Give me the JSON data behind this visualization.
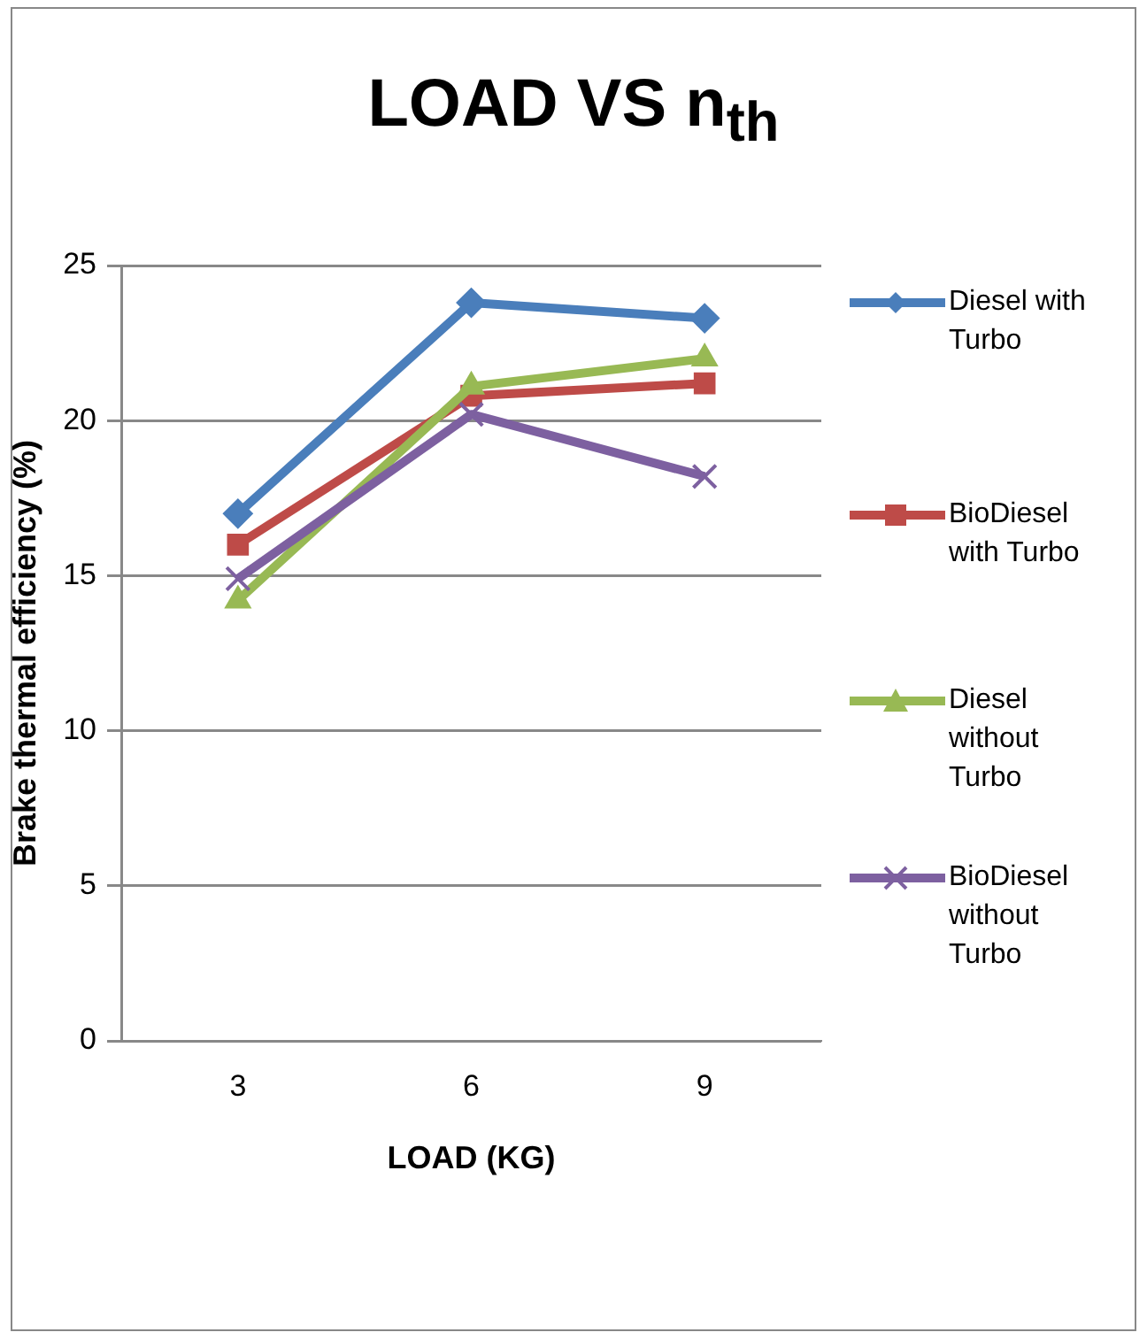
{
  "chart_data": {
    "type": "line",
    "title": "LOAD VS n$_{th}$",
    "xlabel": "LOAD (KG)",
    "ylabel": "Brake thermal efficiency (%)",
    "categories": [
      "3",
      "6",
      "9"
    ],
    "ylim": [
      0,
      25
    ],
    "yticks": [
      0,
      5,
      10,
      15,
      20,
      25
    ],
    "grid": "y",
    "legend": "right",
    "line_style": "solid",
    "series": [
      {
        "name": "Diesel with Turbo",
        "color": "#4a7ebb",
        "marker": "diamond",
        "values": [
          17.0,
          23.8,
          23.3
        ]
      },
      {
        "name": "BioDiesel with Turbo",
        "color": "#be4b48",
        "marker": "square",
        "values": [
          16.0,
          20.8,
          21.2
        ]
      },
      {
        "name": "Diesel without Turbo",
        "color": "#98b954",
        "marker": "triangle",
        "values": [
          14.2,
          21.1,
          22.0
        ]
      },
      {
        "name": "BioDiesel without Turbo",
        "color": "#7d60a0",
        "marker": "cross",
        "values": [
          14.9,
          20.2,
          18.2
        ]
      }
    ]
  }
}
